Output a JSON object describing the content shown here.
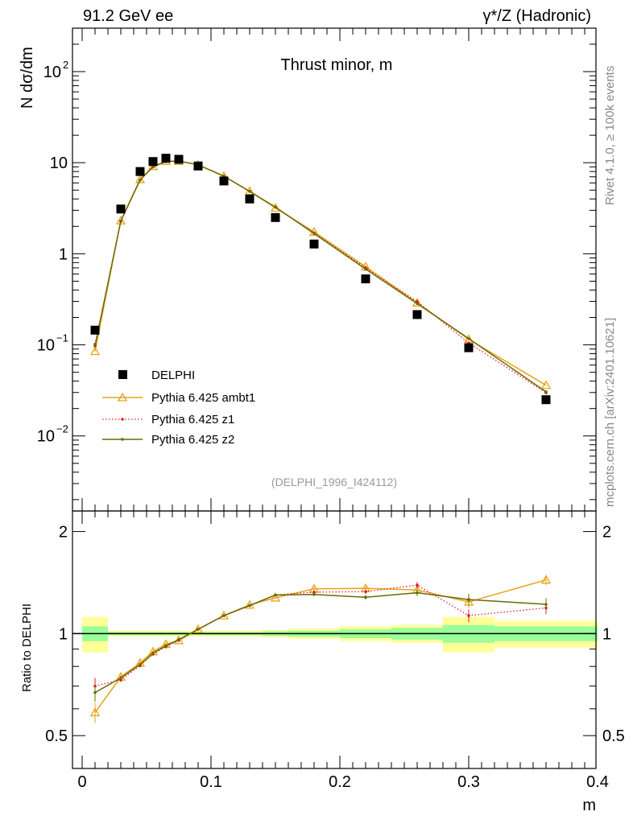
{
  "header": {
    "left": "91.2 GeV ee",
    "right": "γ*/Z (Hadronic)"
  },
  "side_text": {
    "top": "Rivet 4.1.0, ≥ 100k events",
    "bottom": "mcplots.cern.ch [arXiv:2401.10621]"
  },
  "chart_data": {
    "type": "line",
    "title": "Thrust minor, m",
    "reference": "(DELPHI_1996_I424112)",
    "xlabel": "m",
    "ylabel": "N  dσ/dm",
    "ratio_ylabel": "Ratio to DELPHI",
    "xlim": [
      0,
      0.4
    ],
    "ylim": [
      0.0015,
      300
    ],
    "yscale": "log",
    "ratio_ylim": [
      0.4,
      2.3
    ],
    "ratio_yscale": "log",
    "x_ticks": [
      "0",
      "0.1",
      "0.2",
      "0.3",
      "0.4"
    ],
    "x_tick_values": [
      0,
      0.1,
      0.2,
      0.3,
      0.4
    ],
    "y_ticks": [
      {
        "v": 0.01,
        "base": "10",
        "exp": "−2"
      },
      {
        "v": 0.1,
        "base": "10",
        "exp": "−1"
      },
      {
        "v": 1,
        "base": "1",
        "exp": ""
      },
      {
        "v": 10,
        "base": "10",
        "exp": ""
      },
      {
        "v": 100,
        "base": "10",
        "exp": "2"
      }
    ],
    "ratio_ticks": [
      {
        "v": 0.5,
        "label": "0.5"
      },
      {
        "v": 1,
        "label": "1"
      },
      {
        "v": 2,
        "label": "2"
      }
    ],
    "x": [
      0.01,
      0.03,
      0.045,
      0.055,
      0.065,
      0.075,
      0.09,
      0.11,
      0.13,
      0.15,
      0.18,
      0.22,
      0.26,
      0.3,
      0.36
    ],
    "bin_edges": [
      [
        0,
        0.02
      ],
      [
        0.02,
        0.04
      ],
      [
        0.04,
        0.05
      ],
      [
        0.05,
        0.06
      ],
      [
        0.06,
        0.07
      ],
      [
        0.07,
        0.08
      ],
      [
        0.08,
        0.1
      ],
      [
        0.1,
        0.12
      ],
      [
        0.12,
        0.14
      ],
      [
        0.14,
        0.16
      ],
      [
        0.16,
        0.2
      ],
      [
        0.2,
        0.24
      ],
      [
        0.24,
        0.28
      ],
      [
        0.28,
        0.32
      ],
      [
        0.32,
        0.4
      ]
    ],
    "data": {
      "name": "DELPHI",
      "values": [
        0.145,
        3.1,
        8.0,
        10.3,
        11.2,
        10.9,
        9.2,
        6.3,
        4.0,
        2.5,
        1.28,
        0.53,
        0.215,
        0.093,
        0.025
      ],
      "stat_band": [
        0.05,
        0.01,
        0.01,
        0.01,
        0.01,
        0.01,
        0.01,
        0.01,
        0.01,
        0.015,
        0.02,
        0.03,
        0.04,
        0.06,
        0.05
      ],
      "total_band": [
        0.12,
        0.02,
        0.02,
        0.02,
        0.02,
        0.02,
        0.02,
        0.02,
        0.02,
        0.025,
        0.035,
        0.05,
        0.06,
        0.12,
        0.09
      ]
    },
    "series": [
      {
        "name": "Pythia 6.425 ambt1",
        "color": "#e8a317",
        "style": "solid",
        "marker": "triangle",
        "ratio": [
          0.585,
          0.745,
          0.82,
          0.885,
          0.93,
          0.955,
          1.03,
          1.13,
          1.215,
          1.275,
          1.355,
          1.36,
          1.345,
          1.24,
          1.44
        ],
        "ratio_err": [
          0.04,
          0.01,
          0.01,
          0.01,
          0.01,
          0.01,
          0.01,
          0.01,
          0.01,
          0.01,
          0.015,
          0.02,
          0.03,
          0.05,
          0.05
        ]
      },
      {
        "name": "Pythia 6.425 z1",
        "color": "#e8192c",
        "style": "dotted",
        "marker": "dot",
        "ratio": [
          0.7,
          0.73,
          0.805,
          0.87,
          0.915,
          0.955,
          1.03,
          1.13,
          1.21,
          1.3,
          1.325,
          1.33,
          1.39,
          1.13,
          1.19
        ],
        "ratio_err": [
          0.04,
          0.01,
          0.01,
          0.01,
          0.01,
          0.01,
          0.01,
          0.01,
          0.01,
          0.01,
          0.015,
          0.02,
          0.03,
          0.05,
          0.05
        ]
      },
      {
        "name": "Pythia 6.425 z2",
        "color": "#6b6b00",
        "style": "solid",
        "marker": "dot",
        "ratio": [
          0.67,
          0.74,
          0.81,
          0.875,
          0.92,
          0.96,
          1.03,
          1.13,
          1.21,
          1.3,
          1.305,
          1.28,
          1.32,
          1.26,
          1.22
        ],
        "ratio_err": [
          0.04,
          0.01,
          0.01,
          0.01,
          0.01,
          0.01,
          0.01,
          0.01,
          0.01,
          0.01,
          0.015,
          0.02,
          0.03,
          0.05,
          0.05
        ]
      }
    ],
    "colors": {
      "data": "#000000",
      "band_total": "#ffff99",
      "band_stat": "#99ff99"
    }
  }
}
